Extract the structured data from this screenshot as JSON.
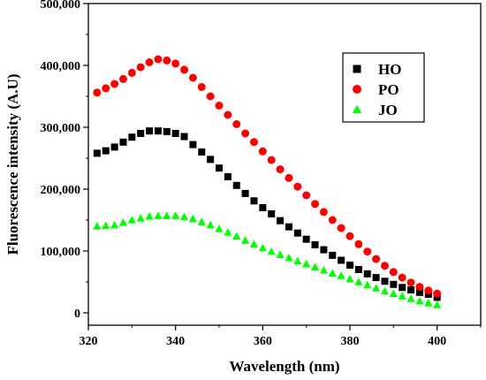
{
  "chart_data": {
    "type": "scatter",
    "title": "",
    "xlabel": "Wavelength (nm)",
    "ylabel": "Fluorescence intensity (A.U)",
    "xlim": [
      320,
      410
    ],
    "ylim": [
      -20000,
      500000
    ],
    "xticks": [
      320,
      340,
      360,
      380,
      400
    ],
    "xtick_labels": [
      "320",
      "340",
      "360",
      "380",
      "400"
    ],
    "yticks": [
      0,
      100000,
      200000,
      300000,
      400000,
      500000
    ],
    "ytick_labels": [
      "0",
      "100,000",
      "200,000",
      "300,000",
      "400,000",
      "500,000"
    ],
    "grid": false,
    "legend": "upper-right",
    "x": [
      322,
      324,
      326,
      328,
      330,
      332,
      334,
      336,
      338,
      340,
      342,
      344,
      346,
      348,
      350,
      352,
      354,
      356,
      358,
      360,
      362,
      364,
      366,
      368,
      370,
      372,
      374,
      376,
      378,
      380,
      382,
      384,
      386,
      388,
      390,
      392,
      394,
      396,
      398,
      400
    ],
    "series": [
      {
        "name": "HO",
        "marker": "square",
        "color": "#000000",
        "values": [
          258000,
          262000,
          268000,
          276000,
          284000,
          290000,
          294000,
          294000,
          293000,
          290000,
          285000,
          272000,
          260000,
          248000,
          234000,
          220000,
          206000,
          193000,
          181000,
          170000,
          160000,
          149000,
          139000,
          129000,
          119000,
          110000,
          102000,
          93000,
          85000,
          77000,
          70000,
          63000,
          57000,
          51000,
          46000,
          41000,
          37000,
          33000,
          30000,
          25000
        ]
      },
      {
        "name": "PO",
        "marker": "circle",
        "color": "#ff0000",
        "values": [
          356000,
          363000,
          370000,
          378000,
          388000,
          397000,
          405000,
          410000,
          408000,
          403000,
          393000,
          380000,
          365000,
          350000,
          335000,
          320000,
          305000,
          290000,
          276000,
          261000,
          247000,
          232000,
          218000,
          204000,
          190000,
          176000,
          163000,
          150000,
          137000,
          124000,
          111000,
          99000,
          87000,
          76000,
          66000,
          57000,
          49000,
          42000,
          36000,
          31000
        ]
      },
      {
        "name": "JO",
        "marker": "triangle",
        "color": "#00ff00",
        "values": [
          140000,
          141000,
          142000,
          146000,
          150000,
          153000,
          156000,
          157000,
          157000,
          157000,
          155000,
          152000,
          147000,
          142000,
          136000,
          130000,
          124000,
          117000,
          111000,
          105000,
          99000,
          94000,
          89000,
          84000,
          79000,
          74000,
          69000,
          64000,
          60000,
          55000,
          50000,
          45000,
          40000,
          35000,
          31000,
          27000,
          23000,
          19000,
          16000,
          13000
        ]
      }
    ]
  }
}
